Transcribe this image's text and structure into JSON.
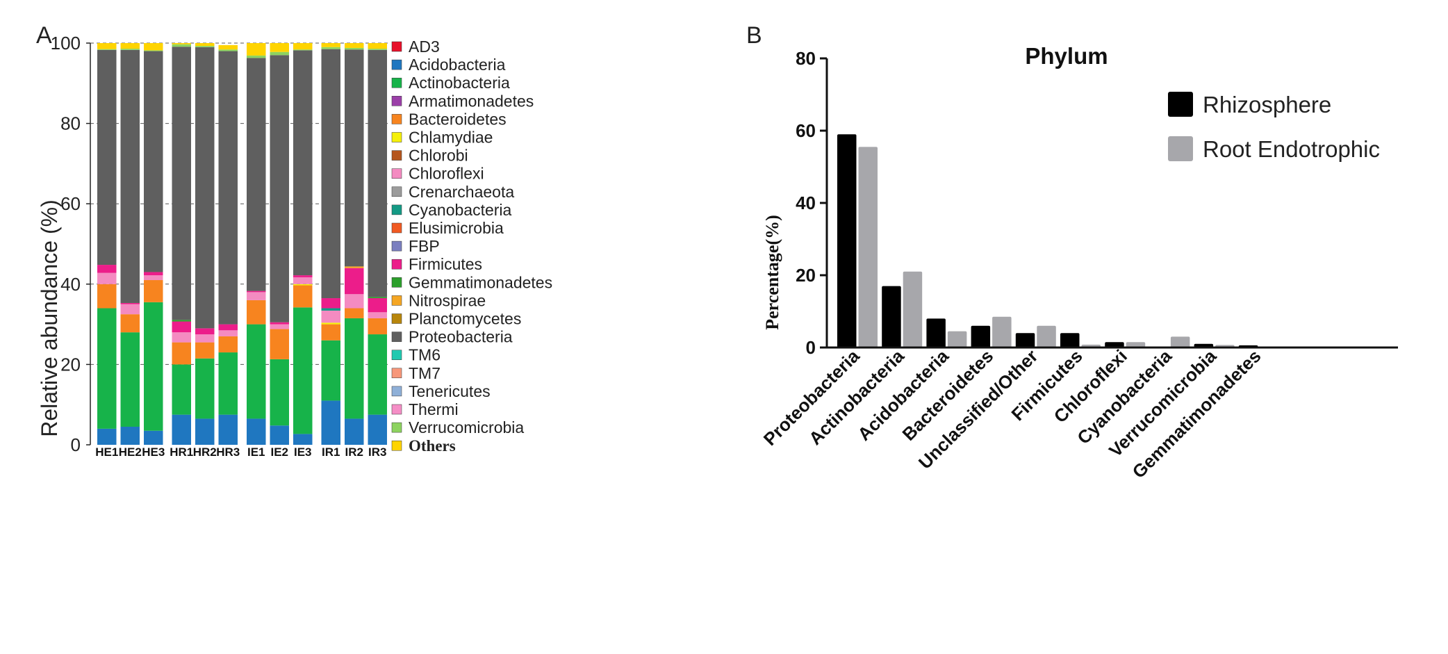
{
  "colors": {
    "AD3": "#e8102a",
    "Acidobacteria": "#1f77c0",
    "Actinobacteria": "#17b34a",
    "Armatimonadetes": "#9b3fa8",
    "Bacteroidetes": "#f7841f",
    "Chlamydiae": "#f5f00a",
    "Chlorobi": "#b5561e",
    "Chloroflexi": "#f48bc1",
    "Crenarchaeota": "#9c9c9c",
    "Cyanobacteria": "#149a85",
    "Elusimicrobia": "#f15a22",
    "FBP": "#7b7fc0",
    "Firmicutes": "#ec1d8a",
    "Gemmatimonadetes": "#2ca02c",
    "Nitrospirae": "#f5a623",
    "Planctomycetes": "#b8860b",
    "Proteobacteria": "#5f5f5f",
    "TM6": "#20c9b0",
    "TM7": "#f7977a",
    "Tenericutes": "#8fb0d8",
    "Thermi": "#f58ec6",
    "Verrucomicrobia": "#8dd35f",
    "Others": "#ffd400",
    "rhizosphere": "#000000",
    "root_endotrophic": "#a7a7ab"
  },
  "chart_data": [
    {
      "panel": "A",
      "type": "bar",
      "stacked": true,
      "categories": [
        "HE1",
        "HE2",
        "HE3",
        "HR1",
        "HR2",
        "HR3",
        "IE1",
        "IE2",
        "IE3",
        "IR1",
        "IR2",
        "IR3"
      ],
      "ylabel": "Relative abundance (%)",
      "ylim": [
        0,
        100
      ],
      "yticks": [
        0,
        20,
        40,
        60,
        80,
        100
      ],
      "grid": true,
      "legend_position": "right",
      "series": [
        {
          "name": "AD3",
          "values": [
            0,
            0,
            0,
            0,
            0,
            0,
            0,
            0,
            0,
            0,
            0,
            0
          ]
        },
        {
          "name": "Acidobacteria",
          "values": [
            4,
            4.5,
            3.5,
            7.5,
            6.5,
            7.5,
            6.5,
            4.8,
            2.7,
            11,
            6.5,
            7.5
          ]
        },
        {
          "name": "Actinobacteria",
          "values": [
            30,
            23.5,
            32,
            12.5,
            15,
            15.5,
            23.5,
            16.5,
            31.5,
            15,
            25,
            20
          ]
        },
        {
          "name": "Armatimonadetes",
          "values": [
            0,
            0,
            0,
            0,
            0,
            0,
            0,
            0,
            0,
            0,
            0,
            0
          ]
        },
        {
          "name": "Bacteroidetes",
          "values": [
            6,
            4.5,
            5.5,
            5.5,
            4,
            4,
            6,
            7.5,
            5.5,
            4,
            2.5,
            4
          ]
        },
        {
          "name": "Chlamydiae",
          "values": [
            0,
            0,
            0,
            0,
            0,
            0,
            0,
            0,
            0.3,
            0.4,
            0,
            0
          ]
        },
        {
          "name": "Chlorobi",
          "values": [
            0,
            0,
            0,
            0,
            0,
            0,
            0,
            0,
            0,
            0,
            0,
            0
          ]
        },
        {
          "name": "Chloroflexi",
          "values": [
            2.8,
            2.5,
            1.2,
            2.5,
            2,
            1.5,
            2,
            1.2,
            1.7,
            3,
            3.5,
            1.5
          ]
        },
        {
          "name": "Crenarchaeota",
          "values": [
            0,
            0,
            0,
            0,
            0,
            0,
            0,
            0,
            0,
            0,
            0,
            0
          ]
        },
        {
          "name": "Cyanobacteria",
          "values": [
            0,
            0,
            0,
            0,
            0,
            0,
            0,
            0,
            0,
            0.6,
            0,
            0
          ]
        },
        {
          "name": "Elusimicrobia",
          "values": [
            0,
            0,
            0,
            0,
            0,
            0,
            0,
            0,
            0,
            0,
            0,
            0
          ]
        },
        {
          "name": "FBP",
          "values": [
            0,
            0,
            0,
            0,
            0,
            0,
            0,
            0,
            0,
            0,
            0,
            0
          ]
        },
        {
          "name": "Firmicutes",
          "values": [
            2,
            0.3,
            0.8,
            2.7,
            1.5,
            1.5,
            0.3,
            0.5,
            0.5,
            2.5,
            6.5,
            3.5
          ]
        },
        {
          "name": "Gemmatimonadetes",
          "values": [
            0,
            0,
            0,
            0.4,
            0,
            0,
            0,
            0,
            0,
            0,
            0,
            0.3
          ]
        },
        {
          "name": "Nitrospirae",
          "values": [
            0,
            0,
            0,
            0,
            0,
            0,
            0,
            0,
            0,
            0,
            0.4,
            0
          ]
        },
        {
          "name": "Planctomycetes",
          "values": [
            0,
            0,
            0,
            0,
            0,
            0,
            0,
            0,
            0,
            0,
            0,
            0
          ]
        },
        {
          "name": "Proteobacteria",
          "values": [
            53.5,
            63,
            55,
            68,
            70,
            68,
            58,
            66.5,
            56,
            62,
            54,
            61.5
          ]
        },
        {
          "name": "TM6",
          "values": [
            0,
            0,
            0,
            0,
            0,
            0,
            0,
            0,
            0,
            0,
            0,
            0
          ]
        },
        {
          "name": "TM7",
          "values": [
            0,
            0,
            0,
            0,
            0,
            0,
            0,
            0,
            0,
            0,
            0,
            0
          ]
        },
        {
          "name": "Tenericutes",
          "values": [
            0,
            0,
            0,
            0,
            0,
            0,
            0,
            0,
            0,
            0,
            0,
            0
          ]
        },
        {
          "name": "Thermi",
          "values": [
            0,
            0,
            0,
            0,
            0,
            0,
            0,
            0,
            0,
            0,
            0,
            0
          ]
        },
        {
          "name": "Verrucomicrobia",
          "values": [
            0.2,
            0.3,
            0.2,
            0.6,
            0.3,
            0.4,
            0.6,
            0.8,
            0.2,
            0.5,
            0.4,
            0.3
          ]
        },
        {
          "name": "Others",
          "values": [
            1.5,
            1.4,
            1.8,
            0.3,
            0.7,
            1.1,
            3.1,
            2.2,
            1.6,
            1.0,
            1.2,
            1.4
          ]
        }
      ]
    },
    {
      "panel": "B",
      "type": "bar",
      "title": "Phylum",
      "ylabel": "Percentage(%)",
      "xlabel": "",
      "ylim": [
        0,
        80
      ],
      "yticks": [
        0,
        20,
        40,
        60,
        80
      ],
      "grid": false,
      "legend_position": "top-right",
      "categories": [
        "Proteobacteria",
        "Actinobacteria",
        "Acidobacteria",
        "Bacteroidetes",
        "Unclassified/Other",
        "Firmicutes",
        "Chloroflexi",
        "Cyanobacteria",
        "Verrucomicrobia",
        "Gemmatimonadetes"
      ],
      "series": [
        {
          "name": "Rhizosphere",
          "values": [
            59,
            17,
            8,
            6,
            4,
            4,
            1.5,
            0,
            1,
            0.6
          ]
        },
        {
          "name": "Root Endotrophic",
          "values": [
            55.5,
            21,
            4.5,
            8.5,
            6,
            0.8,
            1.5,
            3,
            0.7,
            0.3
          ]
        }
      ]
    }
  ]
}
